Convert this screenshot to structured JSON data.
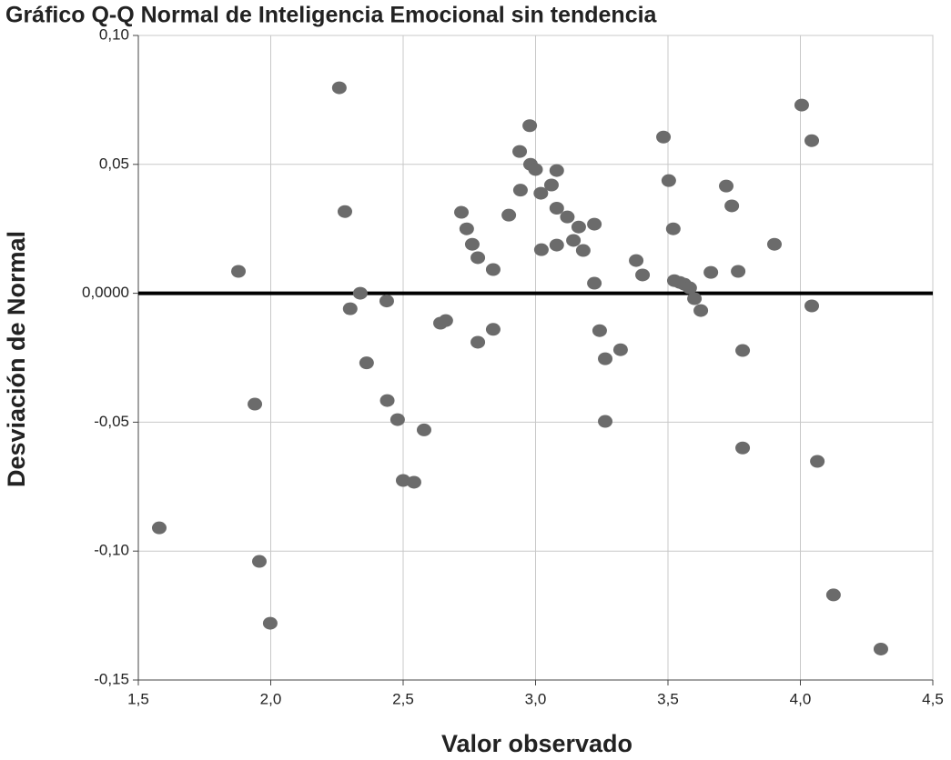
{
  "chart_data": {
    "type": "scatter",
    "title": "Gráfico Q-Q Normal de Inteligencia Emocional sin tendencia",
    "xlabel": "Valor observado",
    "ylabel": "Desviación de Normal",
    "xlim": [
      1.5,
      4.5
    ],
    "ylim": [
      -0.15,
      0.1
    ],
    "xticks": [
      {
        "value": 1.5,
        "label": "1,5"
      },
      {
        "value": 2.0,
        "label": "2,0"
      },
      {
        "value": 2.5,
        "label": "2,5"
      },
      {
        "value": 3.0,
        "label": "3,0"
      },
      {
        "value": 3.5,
        "label": "3,5"
      },
      {
        "value": 4.0,
        "label": "4,0"
      },
      {
        "value": 4.5,
        "label": "4,5"
      }
    ],
    "yticks": [
      {
        "value": -0.15,
        "label": "-0,15"
      },
      {
        "value": -0.1,
        "label": "-0,10"
      },
      {
        "value": -0.05,
        "label": "-0,05"
      },
      {
        "value": 0,
        "label": "0,0000"
      },
      {
        "value": 0.05,
        "label": "0,05"
      },
      {
        "value": 0.1,
        "label": "0,10"
      }
    ],
    "grid": true,
    "hline": 0,
    "color": "#6b6b6b",
    "x": [
      1.579,
      1.878,
      1.94,
      1.957,
      1.998,
      2.259,
      2.28,
      2.3,
      2.338,
      2.362,
      2.438,
      2.44,
      2.479,
      2.5,
      2.541,
      2.579,
      2.641,
      2.661,
      2.72,
      2.74,
      2.761,
      2.782,
      2.782,
      2.84,
      2.84,
      2.899,
      2.94,
      2.943,
      2.978,
      2.981,
      3.0,
      3.02,
      3.022,
      3.06,
      3.08,
      3.08,
      3.08,
      3.12,
      3.143,
      3.163,
      3.18,
      3.222,
      3.222,
      3.242,
      3.263,
      3.263,
      3.321,
      3.38,
      3.404,
      3.483,
      3.503,
      3.52,
      3.524,
      3.545,
      3.562,
      3.582,
      3.6,
      3.624,
      3.662,
      3.72,
      3.741,
      3.765,
      3.782,
      3.782,
      3.902,
      4.005,
      4.043,
      4.043,
      4.064,
      4.125,
      4.304
    ],
    "values": [
      -0.091,
      0.0085,
      -0.043,
      -0.104,
      -0.128,
      0.0797,
      0.0317,
      -0.006,
      0.0,
      -0.027,
      -0.003,
      -0.0416,
      -0.049,
      -0.0726,
      -0.0733,
      -0.053,
      -0.0116,
      -0.0106,
      0.0314,
      0.025,
      0.019,
      0.0138,
      -0.019,
      0.0092,
      -0.014,
      0.0303,
      0.055,
      0.04,
      0.065,
      0.05,
      0.048,
      0.0388,
      0.0169,
      0.042,
      0.0476,
      0.033,
      0.0187,
      0.0296,
      0.0205,
      0.0257,
      0.0166,
      0.0039,
      0.0268,
      -0.0145,
      -0.0254,
      -0.0497,
      -0.0219,
      0.0127,
      0.0071,
      0.0606,
      0.0437,
      0.025,
      0.0049,
      0.0042,
      0.0035,
      0.0021,
      -0.0021,
      -0.0067,
      0.0081,
      0.0416,
      0.0339,
      0.0085,
      -0.0222,
      -0.06,
      0.019,
      0.073,
      0.0592,
      -0.0049,
      -0.0652,
      -0.117,
      -0.138
    ]
  }
}
